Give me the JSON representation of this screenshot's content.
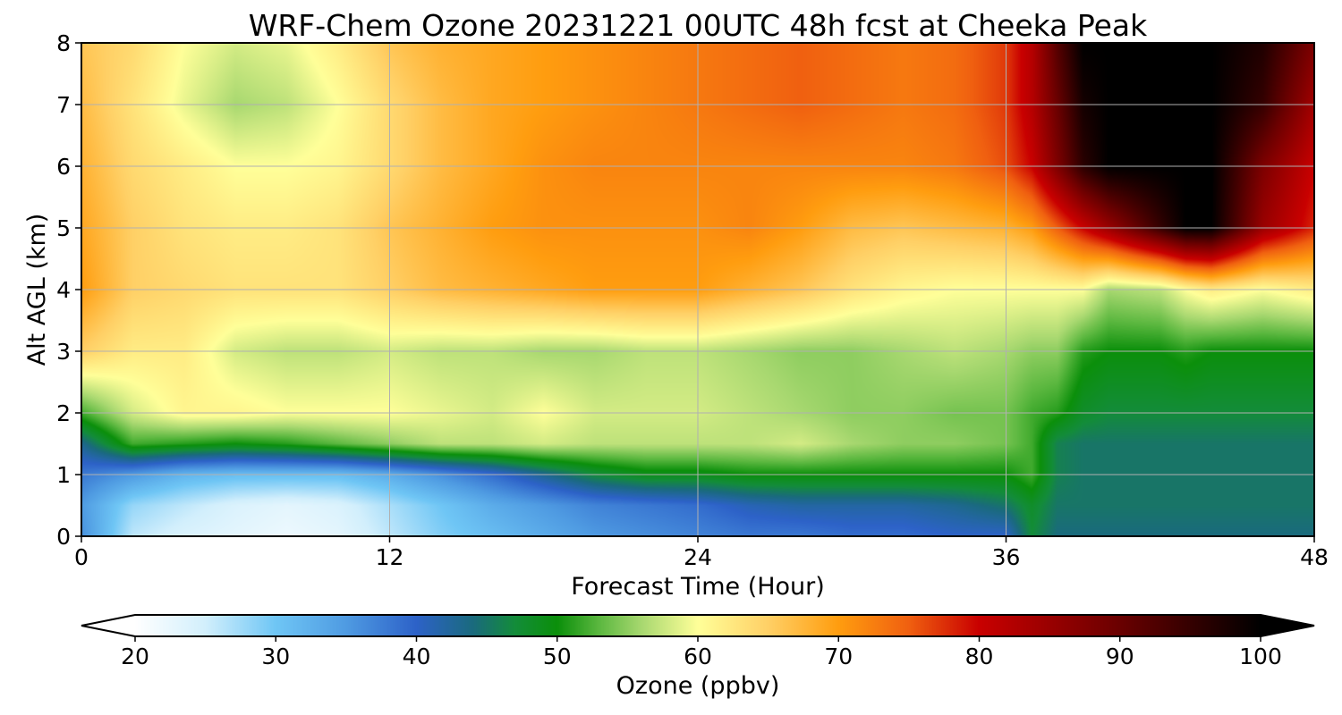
{
  "chart_data": {
    "type": "heatmap",
    "title": "WRF-Chem Ozone  20231221 00UTC 48h fcst at Cheeka Peak",
    "xlabel": "Forecast Time (Hour)",
    "ylabel": "Alt AGL (km)",
    "xlim": [
      0,
      48
    ],
    "ylim": [
      0,
      8
    ],
    "x_ticks": [
      0,
      12,
      24,
      36,
      48
    ],
    "y_ticks": [
      0,
      1,
      2,
      3,
      4,
      5,
      6,
      7,
      8
    ],
    "grid": true,
    "colorbar": {
      "label": "Ozone  (ppbv)",
      "ticks": [
        20,
        30,
        40,
        50,
        60,
        70,
        80,
        90,
        100
      ],
      "range": [
        20,
        100
      ],
      "extend": "both",
      "stops": [
        {
          "v": 20,
          "c": "#ffffff"
        },
        {
          "v": 25,
          "c": "#d2effc"
        },
        {
          "v": 30,
          "c": "#6fc6f5"
        },
        {
          "v": 35,
          "c": "#4f9be2"
        },
        {
          "v": 40,
          "c": "#2d62c8"
        },
        {
          "v": 44,
          "c": "#1a6a7e"
        },
        {
          "v": 47,
          "c": "#138c3a"
        },
        {
          "v": 50,
          "c": "#0b8f0b"
        },
        {
          "v": 53,
          "c": "#5cb840"
        },
        {
          "v": 56,
          "c": "#a8d870"
        },
        {
          "v": 60,
          "c": "#ffff99"
        },
        {
          "v": 65,
          "c": "#ffd066"
        },
        {
          "v": 70,
          "c": "#ff9d0f"
        },
        {
          "v": 75,
          "c": "#f06010"
        },
        {
          "v": 80,
          "c": "#c90000"
        },
        {
          "v": 90,
          "c": "#6a0000"
        },
        {
          "v": 100,
          "c": "#000000"
        }
      ]
    },
    "x": [
      0,
      2,
      4,
      6,
      8,
      10,
      12,
      14,
      16,
      18,
      20,
      22,
      24,
      26,
      28,
      30,
      32,
      34,
      36,
      37,
      38,
      39,
      40,
      42,
      43,
      44,
      46,
      48
    ],
    "y": [
      0,
      0.5,
      1,
      1.5,
      2,
      3,
      4,
      5,
      6,
      7,
      8
    ],
    "z": [
      [
        36,
        26,
        24,
        23,
        22,
        23,
        26,
        29,
        31,
        33,
        35,
        36,
        37,
        38,
        38,
        39,
        39,
        40,
        40,
        47,
        44,
        44,
        44,
        44,
        44,
        44,
        44,
        44
      ],
      [
        35,
        28,
        26,
        24,
        23,
        24,
        27,
        30,
        33,
        35,
        37,
        38,
        39,
        41,
        42,
        42,
        42,
        43,
        45,
        48,
        45,
        45,
        45,
        45,
        45,
        45,
        45,
        45
      ],
      [
        38,
        35,
        32,
        31,
        31,
        31,
        33,
        36,
        39,
        43,
        47,
        49,
        49,
        50,
        50,
        50,
        50,
        50,
        50,
        52,
        46,
        45,
        45,
        45,
        45,
        45,
        45,
        45
      ],
      [
        43,
        52,
        51,
        50,
        51,
        53,
        55,
        57,
        57,
        58,
        57,
        57,
        57,
        57,
        58,
        56,
        55,
        55,
        54,
        52,
        46,
        45,
        45,
        45,
        45,
        45,
        45,
        45
      ],
      [
        52,
        58,
        61,
        61,
        60,
        60,
        60,
        59,
        58,
        60,
        58,
        58,
        58,
        57,
        56,
        55,
        55,
        54,
        54,
        52,
        51,
        48,
        47,
        47,
        47,
        47,
        47,
        47
      ],
      [
        65,
        62,
        62,
        58,
        57,
        57,
        58,
        57,
        57,
        56,
        56,
        57,
        57,
        56,
        55,
        55,
        56,
        57,
        56,
        55,
        55,
        51,
        50,
        50,
        51,
        50,
        50,
        50
      ],
      [
        70,
        65,
        64,
        63,
        63,
        63,
        65,
        67,
        68,
        69,
        70,
        70,
        70,
        68,
        66,
        63,
        61,
        60,
        60,
        60,
        60,
        60,
        56,
        57,
        60,
        62,
        60,
        62
      ],
      [
        69,
        65,
        63,
        62,
        62,
        63,
        66,
        68,
        70,
        71,
        71,
        71,
        71,
        72,
        70,
        67,
        66,
        67,
        68,
        70,
        75,
        80,
        85,
        95,
        100,
        100,
        85,
        78
      ],
      [
        68,
        64,
        62,
        60,
        60,
        61,
        64,
        67,
        69,
        71,
        72,
        72,
        72,
        72,
        72,
        72,
        72,
        73,
        76,
        80,
        88,
        96,
        100,
        100,
        100,
        100,
        88,
        80
      ],
      [
        67,
        63,
        59,
        56,
        57,
        60,
        64,
        67,
        69,
        70,
        71,
        72,
        73,
        74,
        75,
        74,
        73,
        74,
        77,
        82,
        90,
        98,
        100,
        100,
        100,
        100,
        95,
        84
      ],
      [
        66,
        64,
        60,
        58,
        59,
        62,
        66,
        68,
        69,
        70,
        71,
        72,
        73,
        74,
        75,
        74,
        73,
        74,
        77,
        82,
        92,
        100,
        100,
        100,
        100,
        100,
        97,
        88
      ]
    ]
  }
}
